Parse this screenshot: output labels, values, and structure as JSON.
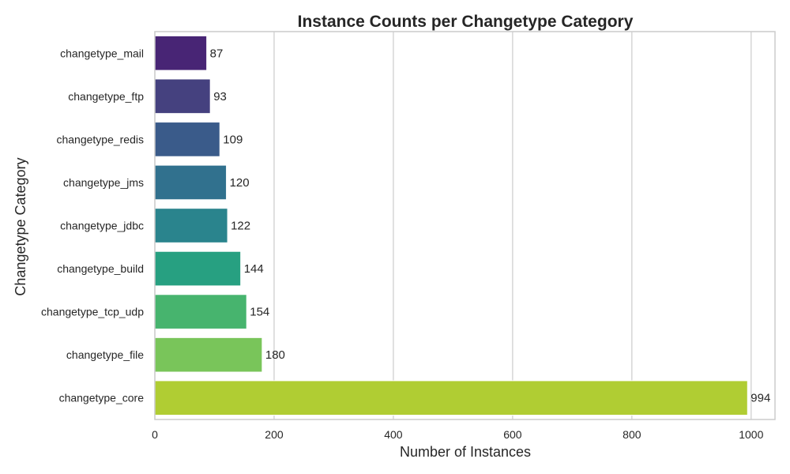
{
  "chart_data": {
    "type": "bar",
    "orientation": "horizontal",
    "title": "Instance Counts per Changetype Category",
    "xlabel": "Number of Instances",
    "ylabel": "Changetype Category",
    "xlim": [
      0,
      1040
    ],
    "xticks": [
      0,
      200,
      400,
      600,
      800,
      1000
    ],
    "grid": "vertical",
    "categories": [
      "changetype_mail",
      "changetype_ftp",
      "changetype_redis",
      "changetype_jms",
      "changetype_jdbc",
      "changetype_build",
      "changetype_tcp_udp",
      "changetype_file",
      "changetype_core"
    ],
    "values": [
      87,
      93,
      109,
      120,
      122,
      144,
      154,
      180,
      994
    ],
    "colors": [
      "#482575",
      "#45417f",
      "#3a5b8a",
      "#31718e",
      "#2a848d",
      "#27a081",
      "#47b46e",
      "#79c55a",
      "#b0cd33"
    ]
  }
}
